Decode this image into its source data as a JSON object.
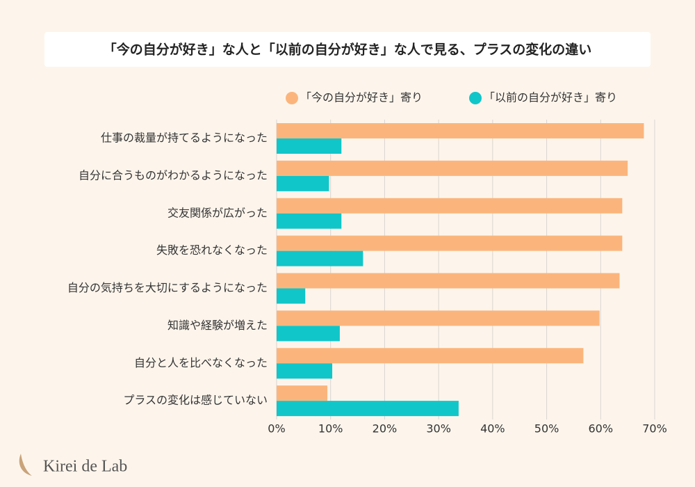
{
  "chart_data": {
    "type": "hbar",
    "title": "「今の自分が好き」な人と「以前の自分が好き」な人で見る、プラスの変化の違い",
    "categories": [
      "仕事の裁量が持てるようになった",
      "自分に合うものがわかるようになった",
      "交友関係が広がった",
      "失敗を恐れなくなった",
      "自分の気持ちを大切にするようになった",
      "知識や経験が増えた",
      "自分と人を比べなくなった",
      "プラスの変化は感じていない"
    ],
    "series": [
      {
        "name": "「今の自分が好き」寄り",
        "color": "#fbb57c",
        "values": [
          68,
          65,
          64,
          64,
          63.5,
          59.8,
          56.8,
          9.4
        ]
      },
      {
        "name": "「以前の自分が好き」寄り",
        "color": "#10c6c9",
        "values": [
          12,
          9.7,
          12,
          16,
          5.3,
          11.7,
          10.3,
          33.7
        ]
      }
    ],
    "xlim": [
      0,
      70
    ],
    "xticks": [
      {
        "value": 0,
        "label": "0%"
      },
      {
        "value": 10,
        "label": "10%"
      },
      {
        "value": 20,
        "label": "20%"
      },
      {
        "value": 30,
        "label": "30%"
      },
      {
        "value": 40,
        "label": "40%"
      },
      {
        "value": 50,
        "label": "50%"
      },
      {
        "value": 60,
        "label": "60%"
      },
      {
        "value": 70,
        "label": "70%"
      }
    ],
    "grid": true
  },
  "logo": "Kirei de Lab"
}
